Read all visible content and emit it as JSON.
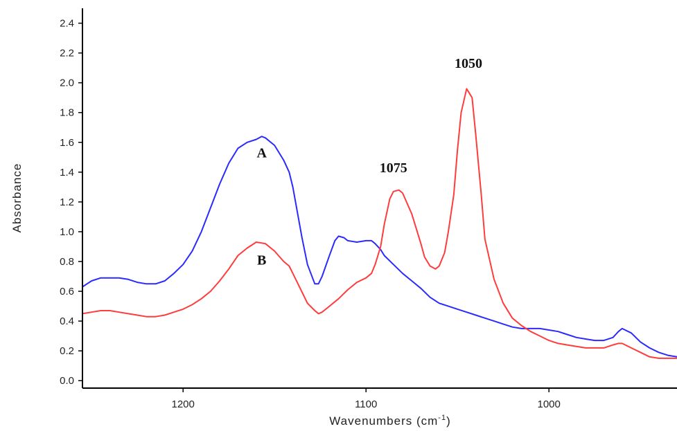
{
  "chart_data": {
    "type": "line",
    "xlabel": "Wavenumbers (cm",
    "xlabel_sup": "-1",
    "xlabel_close": ")",
    "ylabel": "Absorbance",
    "xlim": [
      1255,
      930
    ],
    "ylim": [
      -0.05,
      2.5
    ],
    "x_reversed": true,
    "grid": false,
    "x_ticks": [
      {
        "value": 1200,
        "label": "1200"
      },
      {
        "value": 1100,
        "label": "1100"
      },
      {
        "value": 1000,
        "label": "1000"
      }
    ],
    "y_ticks": [
      {
        "value": 0.0,
        "label": "0.0"
      },
      {
        "value": 0.2,
        "label": "0.2"
      },
      {
        "value": 0.4,
        "label": "0.4"
      },
      {
        "value": 0.6,
        "label": "0.6"
      },
      {
        "value": 0.8,
        "label": "0.8"
      },
      {
        "value": 1.0,
        "label": "1.0"
      },
      {
        "value": 1.2,
        "label": "1.2"
      },
      {
        "value": 1.4,
        "label": "1.4"
      },
      {
        "value": 1.6,
        "label": "1.6"
      },
      {
        "value": 1.8,
        "label": "1.8"
      },
      {
        "value": 2.0,
        "label": "2.0"
      },
      {
        "value": 2.2,
        "label": "2.2"
      },
      {
        "value": 2.4,
        "label": "2.4"
      }
    ],
    "series": [
      {
        "color": "#2a2aff",
        "x": [
          1255,
          1250,
          1245,
          1240,
          1235,
          1230,
          1225,
          1220,
          1215,
          1210,
          1205,
          1200,
          1195,
          1190,
          1185,
          1180,
          1175,
          1170,
          1165,
          1160,
          1157,
          1155,
          1150,
          1145,
          1142,
          1140,
          1135,
          1132,
          1128,
          1126,
          1124,
          1120,
          1117,
          1115,
          1112,
          1110,
          1105,
          1100,
          1097,
          1095,
          1092,
          1090,
          1085,
          1080,
          1075,
          1070,
          1065,
          1060,
          1055,
          1050,
          1045,
          1040,
          1035,
          1030,
          1025,
          1020,
          1015,
          1010,
          1005,
          1000,
          995,
          990,
          985,
          980,
          975,
          970,
          965,
          962,
          960,
          955,
          950,
          945,
          940,
          935,
          930
        ],
        "y": [
          0.63,
          0.67,
          0.69,
          0.69,
          0.69,
          0.68,
          0.66,
          0.65,
          0.65,
          0.67,
          0.72,
          0.78,
          0.87,
          1.0,
          1.16,
          1.32,
          1.46,
          1.56,
          1.6,
          1.62,
          1.64,
          1.63,
          1.58,
          1.48,
          1.4,
          1.3,
          0.96,
          0.78,
          0.65,
          0.65,
          0.7,
          0.84,
          0.94,
          0.97,
          0.96,
          0.94,
          0.93,
          0.94,
          0.94,
          0.92,
          0.88,
          0.84,
          0.78,
          0.72,
          0.67,
          0.62,
          0.56,
          0.52,
          0.5,
          0.48,
          0.46,
          0.44,
          0.42,
          0.4,
          0.38,
          0.36,
          0.35,
          0.35,
          0.35,
          0.34,
          0.33,
          0.31,
          0.29,
          0.28,
          0.27,
          0.27,
          0.29,
          0.33,
          0.35,
          0.32,
          0.26,
          0.22,
          0.19,
          0.17,
          0.16
        ]
      },
      {
        "color": "#ff3b3b",
        "x": [
          1255,
          1250,
          1245,
          1240,
          1235,
          1230,
          1225,
          1220,
          1215,
          1210,
          1205,
          1200,
          1195,
          1190,
          1185,
          1180,
          1175,
          1170,
          1165,
          1160,
          1155,
          1150,
          1145,
          1142,
          1140,
          1136,
          1132,
          1128,
          1126,
          1124,
          1120,
          1115,
          1110,
          1105,
          1100,
          1097,
          1095,
          1092,
          1090,
          1087,
          1085,
          1082,
          1080,
          1075,
          1070,
          1068,
          1065,
          1062,
          1060,
          1057,
          1055,
          1052,
          1050,
          1048,
          1045,
          1042,
          1040,
          1037,
          1035,
          1030,
          1025,
          1020,
          1015,
          1010,
          1005,
          1000,
          995,
          990,
          985,
          980,
          975,
          970,
          965,
          962,
          960,
          955,
          950,
          945,
          940,
          935,
          930
        ],
        "y": [
          0.45,
          0.46,
          0.47,
          0.47,
          0.46,
          0.45,
          0.44,
          0.43,
          0.43,
          0.44,
          0.46,
          0.48,
          0.51,
          0.55,
          0.6,
          0.67,
          0.75,
          0.84,
          0.89,
          0.93,
          0.92,
          0.87,
          0.8,
          0.77,
          0.72,
          0.62,
          0.52,
          0.47,
          0.45,
          0.46,
          0.5,
          0.55,
          0.61,
          0.66,
          0.69,
          0.72,
          0.78,
          0.9,
          1.05,
          1.22,
          1.27,
          1.28,
          1.26,
          1.12,
          0.92,
          0.83,
          0.77,
          0.75,
          0.77,
          0.86,
          1.0,
          1.25,
          1.55,
          1.8,
          1.96,
          1.9,
          1.65,
          1.25,
          0.95,
          0.68,
          0.52,
          0.42,
          0.37,
          0.33,
          0.3,
          0.27,
          0.25,
          0.24,
          0.23,
          0.22,
          0.22,
          0.22,
          0.24,
          0.25,
          0.25,
          0.22,
          0.19,
          0.16,
          0.15,
          0.15,
          0.15
        ]
      }
    ],
    "annotations": [
      {
        "text": "A",
        "x": 1157,
        "y": 1.5
      },
      {
        "text": "B",
        "x": 1157,
        "y": 0.78
      },
      {
        "text": "1075",
        "x": 1085,
        "y": 1.4
      },
      {
        "text": "1050",
        "x": 1044,
        "y": 2.1
      }
    ]
  }
}
